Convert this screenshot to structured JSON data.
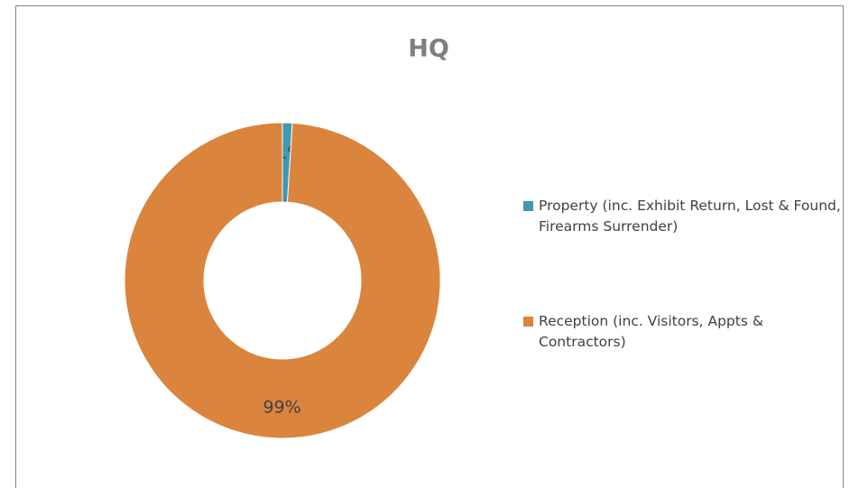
{
  "chart_data": {
    "type": "pie",
    "title": "HQ",
    "categories": [
      "Property (inc. Exhibit Return, Lost & Found, Firearms Surrender)",
      "Reception (inc. Visitors, Appts & Contractors)"
    ],
    "values": [
      1,
      99
    ],
    "value_labels": [
      "1%",
      "99%"
    ],
    "colors": [
      "#4198af",
      "#db843d"
    ],
    "donut": true,
    "legend": "right"
  }
}
